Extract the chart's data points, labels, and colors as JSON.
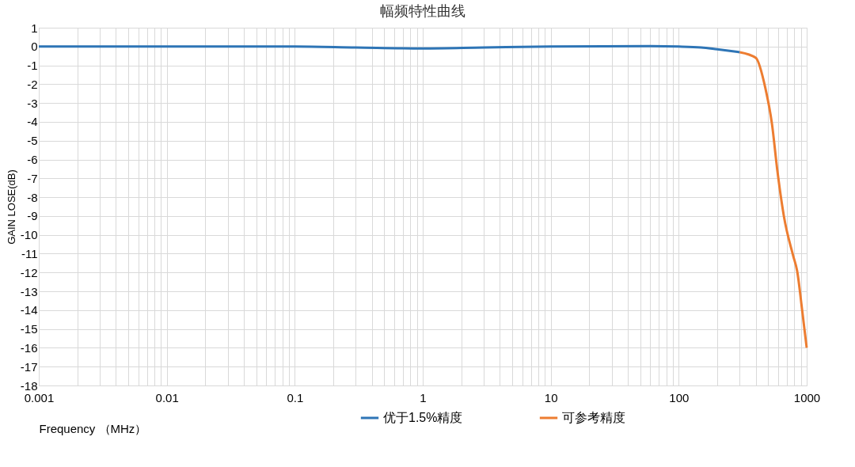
{
  "chart_data": {
    "type": "line",
    "title": "幅频特性曲线",
    "xlabel": "Frequency （MHz）",
    "ylabel": "GAIN LOSE(dB)",
    "log": "x",
    "grid": true,
    "legend": "bottom",
    "line_style": "solid",
    "marker": "none",
    "xlim": [
      0.001,
      1000
    ],
    "ylim": [
      -18,
      1
    ],
    "xticks": [
      0.001,
      {
        "value": 0.002,
        "label": null
      },
      {
        "value": 0.003,
        "label": null
      },
      {
        "value": 0.004,
        "label": null
      },
      {
        "value": 0.005,
        "label": null
      },
      {
        "value": 0.006,
        "label": null
      },
      {
        "value": 0.007,
        "label": null
      },
      {
        "value": 0.008,
        "label": null
      },
      {
        "value": 0.009,
        "label": null
      },
      0.01,
      {
        "value": 0.02,
        "label": null
      },
      {
        "value": 0.03,
        "label": null
      },
      {
        "value": 0.04,
        "label": null
      },
      {
        "value": 0.05,
        "label": null
      },
      {
        "value": 0.06,
        "label": null
      },
      {
        "value": 0.07,
        "label": null
      },
      {
        "value": 0.08,
        "label": null
      },
      {
        "value": 0.09,
        "label": null
      },
      0.1,
      {
        "value": 0.2,
        "label": null
      },
      {
        "value": 0.3,
        "label": null
      },
      {
        "value": 0.4,
        "label": null
      },
      {
        "value": 0.5,
        "label": null
      },
      {
        "value": 0.6,
        "label": null
      },
      {
        "value": 0.7,
        "label": null
      },
      {
        "value": 0.8,
        "label": null
      },
      {
        "value": 0.9,
        "label": null
      },
      1,
      {
        "value": 2,
        "label": null
      },
      {
        "value": 3,
        "label": null
      },
      {
        "value": 4,
        "label": null
      },
      {
        "value": 5,
        "label": null
      },
      {
        "value": 6,
        "label": null
      },
      {
        "value": 7,
        "label": null
      },
      {
        "value": 8,
        "label": null
      },
      {
        "value": 9,
        "label": null
      },
      10,
      {
        "value": 20,
        "label": null
      },
      {
        "value": 30,
        "label": null
      },
      {
        "value": 40,
        "label": null
      },
      {
        "value": 50,
        "label": null
      },
      {
        "value": 60,
        "label": null
      },
      {
        "value": 70,
        "label": null
      },
      {
        "value": 80,
        "label": null
      },
      {
        "value": 90,
        "label": null
      },
      100,
      {
        "value": 200,
        "label": null
      },
      {
        "value": 300,
        "label": null
      },
      {
        "value": 400,
        "label": null
      },
      {
        "value": 500,
        "label": null
      },
      {
        "value": 600,
        "label": null
      },
      {
        "value": 700,
        "label": null
      },
      {
        "value": 800,
        "label": null
      },
      {
        "value": 900,
        "label": null
      },
      1000
    ],
    "yticks": [
      1,
      0,
      -1,
      -2,
      -3,
      -4,
      -5,
      -6,
      -7,
      -8,
      -9,
      -10,
      -11,
      -12,
      -13,
      -14,
      -15,
      -16,
      -17,
      -18
    ],
    "series": [
      {
        "name": "优于1.5%精度",
        "color": "#2e75b6",
        "x": [
          0.001,
          0.01,
          0.1,
          0.3,
          1,
          3,
          10,
          60,
          100,
          150,
          200,
          300
        ],
        "values": [
          0,
          0,
          0,
          -0.05,
          -0.1,
          -0.05,
          0,
          0.02,
          0,
          -0.05,
          -0.15,
          -0.3
        ]
      },
      {
        "name": "可参考精度",
        "color": "#ed7d31",
        "x": [
          300,
          400,
          475,
          535,
          590,
          663,
          783,
          841,
          925,
          1000
        ],
        "values": [
          -0.3,
          -0.6,
          -2.2,
          -4.1,
          -6.6,
          -9,
          -11.1,
          -11.9,
          -14.1,
          -16
        ]
      }
    ]
  }
}
